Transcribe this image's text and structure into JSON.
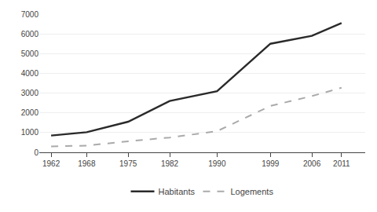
{
  "chart_data": {
    "type": "line",
    "x": [
      1962,
      1968,
      1975,
      1982,
      1990,
      1999,
      2006,
      2011
    ],
    "series": [
      {
        "name": "Habitants",
        "color": "#2a2a2a",
        "line_style": "solid",
        "values": [
          850,
          1020,
          1550,
          2600,
          3100,
          5500,
          5900,
          6550
        ]
      },
      {
        "name": "Logements",
        "color": "#aaaaaa",
        "line_style": "dashed",
        "values": [
          300,
          340,
          560,
          750,
          1070,
          2350,
          2850,
          3270
        ]
      }
    ],
    "xlim": [
      1960,
      2015
    ],
    "xticks": [
      1962,
      1968,
      1975,
      1982,
      1990,
      1999,
      2006,
      2011
    ],
    "ylim": [
      0,
      7000
    ],
    "yticks": [
      0,
      1000,
      2000,
      3000,
      4000,
      5000,
      6000,
      7000
    ],
    "grid": "y",
    "legend": "bottom"
  }
}
